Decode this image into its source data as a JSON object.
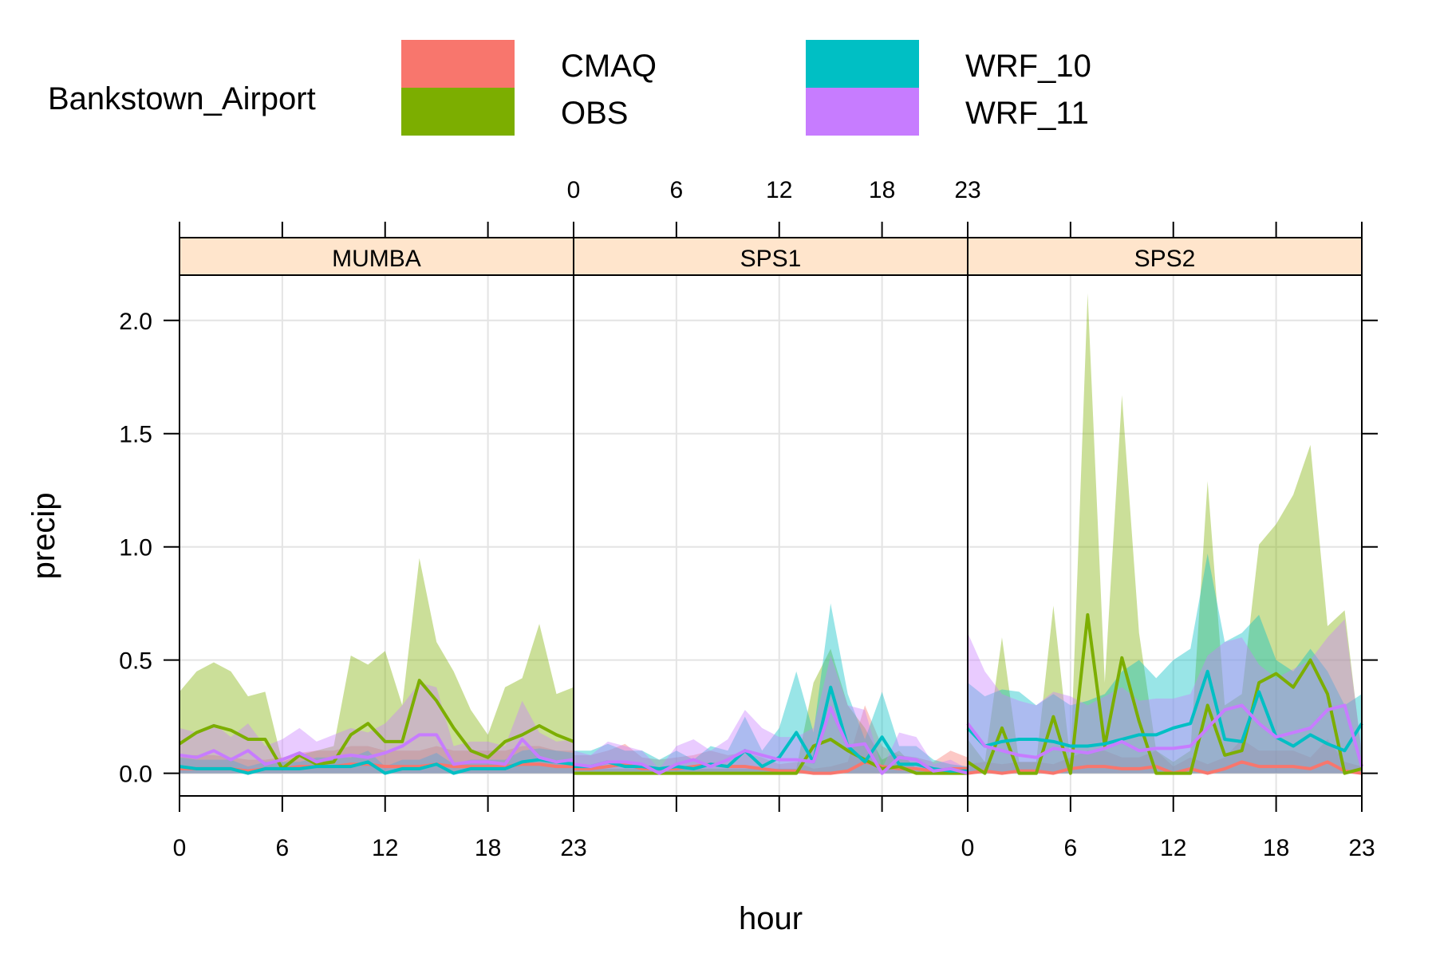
{
  "chart_data": {
    "type": "line",
    "legend": {
      "title": "Bankstown_Airport",
      "placement": "top",
      "entries": [
        {
          "name": "CMAQ",
          "color": "#F8766D"
        },
        {
          "name": "OBS",
          "color": "#7CAE00"
        },
        {
          "name": "WRF_10",
          "color": "#00BFC4"
        },
        {
          "name": "WRF_11",
          "color": "#C77CFF"
        }
      ]
    },
    "xlabel": "hour",
    "ylabel": "precip",
    "xlim": [
      0,
      23
    ],
    "ylim": [
      -0.1,
      2.2
    ],
    "x_ticks": [
      "0",
      "6",
      "12",
      "18",
      "23"
    ],
    "y_ticks": [
      "0.0",
      "0.5",
      "1.0",
      "1.5",
      "2.0"
    ],
    "grid": true,
    "band_opacity": 0.4,
    "x": [
      0,
      1,
      2,
      3,
      4,
      5,
      6,
      7,
      8,
      9,
      10,
      11,
      12,
      13,
      14,
      15,
      16,
      17,
      18,
      19,
      20,
      21,
      22,
      23
    ],
    "panels": [
      {
        "strip": "MUMBA",
        "series": [
          {
            "name": "CMAQ",
            "values": [
              0.02,
              0.02,
              0.02,
              0.02,
              0.01,
              0.02,
              0.02,
              0.03,
              0.03,
              0.03,
              0.04,
              0.04,
              0.03,
              0.03,
              0.03,
              0.04,
              0.03,
              0.03,
              0.03,
              0.03,
              0.04,
              0.04,
              0.03,
              0.03
            ],
            "lower": [
              0,
              0,
              0,
              0,
              0,
              0,
              0,
              0,
              0,
              0,
              0,
              0,
              0,
              0,
              0,
              0,
              0,
              0,
              0,
              0,
              0,
              0,
              0,
              0
            ],
            "upper": [
              0.08,
              0.08,
              0.08,
              0.07,
              0.06,
              0.06,
              0.07,
              0.09,
              0.1,
              0.1,
              0.12,
              0.12,
              0.1,
              0.1,
              0.1,
              0.12,
              0.1,
              0.1,
              0.1,
              0.1,
              0.12,
              0.12,
              0.1,
              0.1
            ]
          },
          {
            "name": "OBS",
            "values": [
              0.13,
              0.18,
              0.21,
              0.19,
              0.15,
              0.15,
              0.02,
              0.08,
              0.04,
              0.05,
              0.17,
              0.22,
              0.14,
              0.14,
              0.41,
              0.32,
              0.2,
              0.1,
              0.07,
              0.14,
              0.17,
              0.21,
              0.17,
              0.14
            ],
            "lower": [
              0,
              0,
              0,
              0,
              0,
              0,
              0,
              0,
              0,
              0,
              0,
              0,
              0,
              0,
              0,
              0,
              0,
              0,
              0,
              0,
              0,
              0,
              0,
              0
            ],
            "upper": [
              0.36,
              0.45,
              0.49,
              0.45,
              0.34,
              0.36,
              0.05,
              0.08,
              0.1,
              0.12,
              0.52,
              0.48,
              0.54,
              0.3,
              0.95,
              0.58,
              0.45,
              0.28,
              0.17,
              0.38,
              0.42,
              0.66,
              0.35,
              0.38
            ]
          },
          {
            "name": "WRF_10",
            "values": [
              0.03,
              0.02,
              0.02,
              0.02,
              0.0,
              0.02,
              0.02,
              0.02,
              0.03,
              0.03,
              0.03,
              0.05,
              0.0,
              0.02,
              0.02,
              0.04,
              0.0,
              0.02,
              0.02,
              0.02,
              0.05,
              0.06,
              0.05,
              0.04
            ],
            "lower": [
              0,
              0,
              0,
              0,
              0,
              0,
              0,
              0,
              0,
              0,
              0,
              0,
              0,
              0,
              0,
              0,
              0,
              0,
              0,
              0,
              0,
              0,
              0,
              0
            ],
            "upper": [
              0.07,
              0.06,
              0.06,
              0.06,
              0.03,
              0.05,
              0.05,
              0.05,
              0.07,
              0.07,
              0.07,
              0.1,
              0.03,
              0.06,
              0.06,
              0.09,
              0.04,
              0.06,
              0.06,
              0.06,
              0.1,
              0.11,
              0.1,
              0.09
            ]
          },
          {
            "name": "WRF_11",
            "values": [
              0.08,
              0.07,
              0.1,
              0.06,
              0.1,
              0.04,
              0.06,
              0.09,
              0.05,
              0.07,
              0.08,
              0.07,
              0.09,
              0.12,
              0.17,
              0.17,
              0.04,
              0.05,
              0.05,
              0.04,
              0.15,
              0.07,
              0.05,
              0.06
            ],
            "lower": [
              0,
              0,
              0,
              0,
              0,
              0,
              0,
              0,
              0,
              0,
              0,
              0,
              0,
              0,
              0,
              0,
              0,
              0,
              0,
              0,
              0,
              0,
              0,
              0
            ],
            "upper": [
              0.2,
              0.18,
              0.22,
              0.16,
              0.22,
              0.12,
              0.15,
              0.2,
              0.14,
              0.17,
              0.2,
              0.18,
              0.22,
              0.3,
              0.4,
              0.38,
              0.12,
              0.14,
              0.14,
              0.12,
              0.32,
              0.18,
              0.14,
              0.15
            ]
          }
        ]
      },
      {
        "strip": "SPS1",
        "series": [
          {
            "name": "CMAQ",
            "values": [
              0.02,
              0.02,
              0.03,
              0.04,
              0.02,
              0.02,
              0.02,
              0.03,
              0.04,
              0.03,
              0.03,
              0.02,
              0.01,
              0.01,
              0.0,
              0.0,
              0.01,
              0.05,
              0.03,
              0.02,
              0.02,
              0.01,
              0.02,
              0.02
            ],
            "lower": [
              0,
              0,
              0,
              0,
              0,
              0,
              0,
              0,
              0,
              0,
              0,
              0,
              0,
              0,
              0,
              0,
              0,
              0,
              0,
              0,
              0,
              0,
              0,
              0
            ],
            "upper": [
              0.08,
              0.08,
              0.1,
              0.13,
              0.07,
              0.06,
              0.07,
              0.08,
              0.1,
              0.08,
              0.09,
              0.07,
              0.04,
              0.05,
              0.02,
              0.03,
              0.05,
              0.3,
              0.12,
              0.08,
              0.07,
              0.05,
              0.1,
              0.07
            ]
          },
          {
            "name": "OBS",
            "values": [
              0.0,
              0.0,
              0.0,
              0.0,
              0.0,
              0.0,
              0.0,
              0.0,
              0.0,
              0.0,
              0.0,
              0.0,
              0.0,
              0.0,
              0.12,
              0.15,
              0.1,
              0.06,
              0.02,
              0.03,
              0.0,
              0.0,
              0.0,
              0.0
            ],
            "lower": [
              0,
              0,
              0,
              0,
              0,
              0,
              0,
              0,
              0,
              0,
              0,
              0,
              0,
              0,
              0,
              0,
              0,
              0,
              0,
              0,
              0,
              0,
              0,
              0
            ],
            "upper": [
              0.02,
              0.02,
              0.02,
              0.02,
              0.02,
              0.02,
              0.02,
              0.02,
              0.02,
              0.02,
              0.02,
              0.02,
              0.02,
              0.02,
              0.4,
              0.55,
              0.3,
              0.2,
              0.06,
              0.1,
              0.02,
              0.02,
              0.02,
              0.02
            ]
          },
          {
            "name": "WRF_10",
            "values": [
              0.03,
              0.03,
              0.05,
              0.03,
              0.03,
              0.02,
              0.03,
              0.02,
              0.04,
              0.03,
              0.1,
              0.03,
              0.07,
              0.18,
              0.05,
              0.38,
              0.12,
              0.05,
              0.16,
              0.04,
              0.04,
              0.02,
              0.01,
              0.01
            ],
            "lower": [
              0,
              0,
              0,
              0,
              0,
              0,
              0,
              0,
              0,
              0,
              0,
              0,
              0,
              0,
              0,
              0,
              0,
              0,
              0,
              0,
              0,
              0,
              0,
              0
            ],
            "upper": [
              0.1,
              0.1,
              0.13,
              0.1,
              0.1,
              0.06,
              0.1,
              0.06,
              0.12,
              0.1,
              0.25,
              0.1,
              0.2,
              0.45,
              0.18,
              0.75,
              0.35,
              0.15,
              0.36,
              0.12,
              0.12,
              0.06,
              0.04,
              0.03
            ]
          },
          {
            "name": "WRF_11",
            "values": [
              0.04,
              0.03,
              0.05,
              0.05,
              0.04,
              0.0,
              0.04,
              0.06,
              0.03,
              0.06,
              0.1,
              0.08,
              0.06,
              0.06,
              0.05,
              0.29,
              0.12,
              0.13,
              0.0,
              0.07,
              0.06,
              0.01,
              0.02,
              0.0
            ],
            "lower": [
              0,
              0,
              0,
              0,
              0,
              0,
              0,
              0,
              0,
              0,
              0,
              0,
              0,
              0,
              0,
              0,
              0,
              0,
              0,
              0,
              0,
              0,
              0,
              0
            ],
            "upper": [
              0.1,
              0.08,
              0.14,
              0.12,
              0.1,
              0.02,
              0.12,
              0.15,
              0.1,
              0.15,
              0.28,
              0.2,
              0.16,
              0.16,
              0.2,
              0.52,
              0.3,
              0.28,
              0.02,
              0.18,
              0.16,
              0.04,
              0.06,
              0.02
            ]
          }
        ]
      },
      {
        "strip": "SPS2",
        "series": [
          {
            "name": "CMAQ",
            "values": [
              0.0,
              0.01,
              0.0,
              0.01,
              0.01,
              0.0,
              0.02,
              0.03,
              0.03,
              0.02,
              0.02,
              0.03,
              0.0,
              0.02,
              0.0,
              0.02,
              0.05,
              0.03,
              0.03,
              0.03,
              0.02,
              0.05,
              0.01,
              0.0
            ],
            "lower": [
              0,
              0,
              0,
              0,
              0,
              0,
              0,
              0,
              0,
              0,
              0,
              0,
              0,
              0,
              0,
              0,
              0,
              0,
              0,
              0,
              0,
              0,
              0,
              0
            ],
            "upper": [
              0.04,
              0.05,
              0.04,
              0.05,
              0.05,
              0.04,
              0.07,
              0.1,
              0.1,
              0.07,
              0.07,
              0.1,
              0.03,
              0.07,
              0.04,
              0.07,
              0.15,
              0.1,
              0.1,
              0.1,
              0.07,
              0.15,
              0.05,
              0.03
            ]
          },
          {
            "name": "OBS",
            "values": [
              0.05,
              0.0,
              0.2,
              0.0,
              0.0,
              0.25,
              0.0,
              0.7,
              0.12,
              0.51,
              0.23,
              0.0,
              0.0,
              0.0,
              0.3,
              0.08,
              0.1,
              0.4,
              0.44,
              0.38,
              0.5,
              0.35,
              0.0,
              0.02
            ],
            "lower": [
              0,
              0,
              0,
              0,
              0,
              0,
              0,
              0,
              0,
              0,
              0,
              0,
              0,
              0,
              0,
              0,
              0,
              0,
              0,
              0,
              0,
              0,
              0,
              0
            ],
            "upper": [
              0.15,
              0.05,
              0.6,
              0.05,
              0.05,
              0.74,
              0.05,
              2.12,
              0.4,
              1.67,
              0.62,
              0.1,
              0.05,
              0.1,
              1.29,
              0.3,
              0.35,
              1.01,
              1.1,
              1.23,
              1.45,
              0.65,
              0.72,
              0.08
            ]
          },
          {
            "name": "WRF_10",
            "values": [
              0.2,
              0.12,
              0.14,
              0.15,
              0.15,
              0.14,
              0.12,
              0.12,
              0.13,
              0.15,
              0.17,
              0.17,
              0.2,
              0.22,
              0.45,
              0.15,
              0.14,
              0.36,
              0.16,
              0.12,
              0.17,
              0.13,
              0.1,
              0.22
            ],
            "lower": [
              0,
              0,
              0,
              0,
              0,
              0,
              0,
              0,
              0,
              0,
              0,
              0,
              0,
              0,
              0,
              0,
              0,
              0,
              0,
              0,
              0,
              0,
              0,
              0
            ],
            "upper": [
              0.4,
              0.34,
              0.37,
              0.36,
              0.3,
              0.35,
              0.3,
              0.32,
              0.35,
              0.45,
              0.5,
              0.42,
              0.5,
              0.55,
              0.97,
              0.58,
              0.62,
              0.7,
              0.5,
              0.45,
              0.55,
              0.45,
              0.3,
              0.35
            ]
          },
          {
            "name": "WRF_11",
            "values": [
              0.22,
              0.12,
              0.1,
              0.08,
              0.07,
              0.11,
              0.1,
              0.09,
              0.11,
              0.14,
              0.1,
              0.11,
              0.11,
              0.12,
              0.2,
              0.28,
              0.3,
              0.22,
              0.16,
              0.18,
              0.2,
              0.28,
              0.3,
              0.03
            ],
            "lower": [
              0,
              0,
              0,
              0,
              0,
              0,
              0,
              0,
              0,
              0,
              0,
              0,
              0,
              0,
              0,
              0,
              0,
              0,
              0,
              0,
              0,
              0,
              0,
              0
            ],
            "upper": [
              0.62,
              0.45,
              0.35,
              0.32,
              0.3,
              0.36,
              0.34,
              0.3,
              0.34,
              0.38,
              0.32,
              0.33,
              0.33,
              0.35,
              0.52,
              0.58,
              0.6,
              0.48,
              0.42,
              0.46,
              0.5,
              0.6,
              0.68,
              0.1
            ]
          }
        ]
      }
    ]
  }
}
